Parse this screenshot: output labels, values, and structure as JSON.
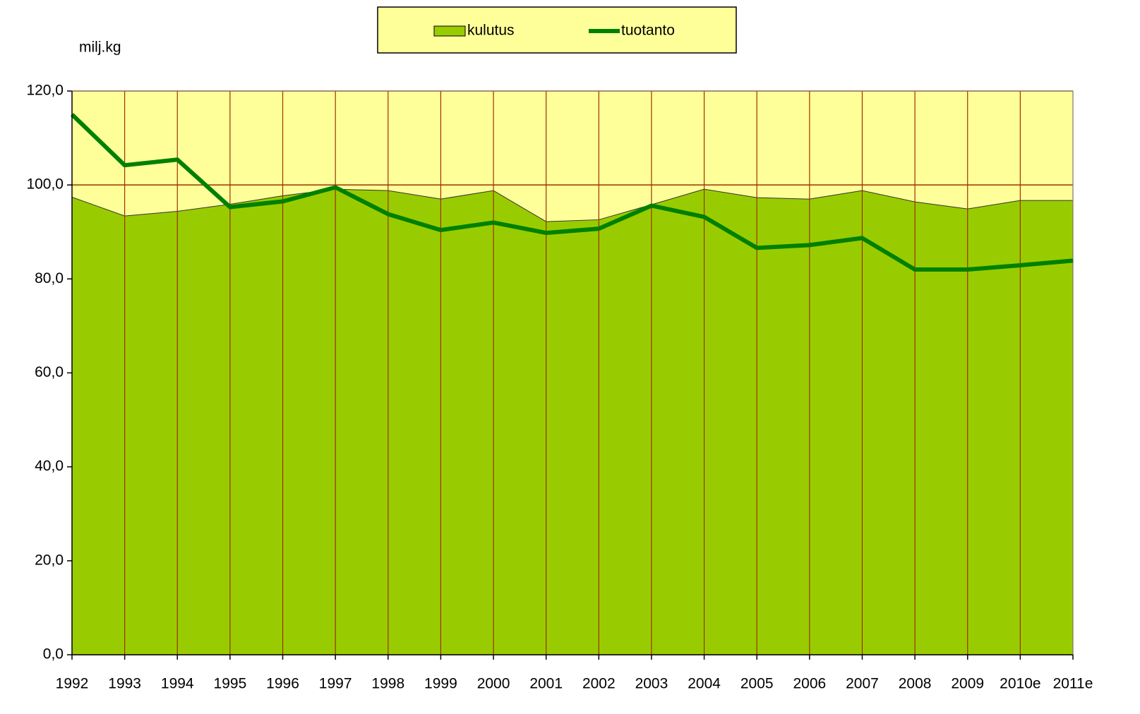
{
  "chart_data": {
    "type": "area",
    "y_axis_label": "milj.kg",
    "categories": [
      "1992",
      "1993",
      "1994",
      "1995",
      "1996",
      "1997",
      "1998",
      "1999",
      "2000",
      "2001",
      "2002",
      "2003",
      "2004",
      "2005",
      "2006",
      "2007",
      "2008",
      "2009",
      "2010e",
      "2011e"
    ],
    "series": [
      {
        "name": "kulutus",
        "type": "area",
        "color": "#99cc00",
        "values": [
          97.4,
          93.4,
          94.4,
          95.9,
          97.7,
          99.1,
          98.8,
          97.0,
          98.8,
          92.2,
          92.6,
          95.8,
          99.1,
          97.3,
          97.0,
          98.8,
          96.4,
          94.9,
          96.7,
          96.7
        ]
      },
      {
        "name": "tuotanto",
        "type": "line",
        "color": "#008000",
        "values": [
          115.0,
          104.2,
          105.4,
          95.3,
          96.5,
          99.5,
          93.8,
          90.4,
          92.0,
          89.8,
          90.7,
          95.6,
          93.2,
          86.6,
          87.2,
          88.7,
          82.0,
          82.0,
          82.9,
          83.9
        ]
      }
    ],
    "ylim": [
      0,
      120
    ],
    "yticks": [
      {
        "value": 0,
        "label": "0,0"
      },
      {
        "value": 20,
        "label": "20,0"
      },
      {
        "value": 40,
        "label": "40,0"
      },
      {
        "value": 60,
        "label": "60,0"
      },
      {
        "value": 80,
        "label": "80,0"
      },
      {
        "value": 100,
        "label": "100,0"
      },
      {
        "value": 120,
        "label": "120,0"
      }
    ],
    "grid": true,
    "legend": "top",
    "background": "#ffff99"
  }
}
